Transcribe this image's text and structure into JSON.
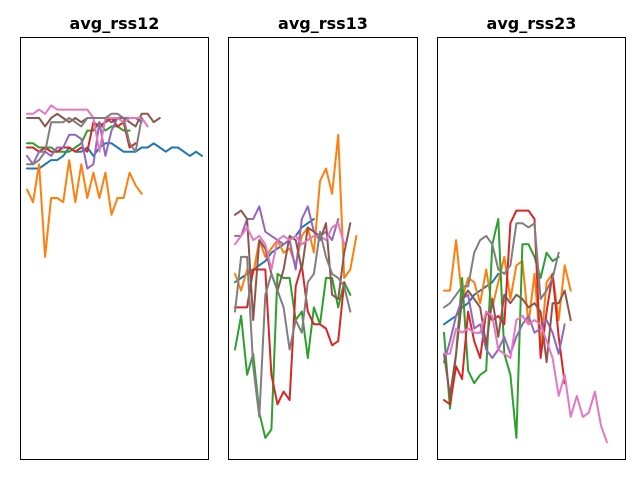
{
  "chart_data": [
    {
      "type": "line",
      "title": "avg_rss12",
      "xlabel": "",
      "ylabel": "",
      "grid": false,
      "series": [
        {
          "color": "#1f77b4",
          "values": [
            0.69,
            0.69,
            0.69,
            0.7,
            0.71,
            0.71,
            0.72,
            0.74,
            0.73,
            0.73,
            0.74,
            0.72,
            0.74,
            0.75,
            0.75,
            0.74,
            0.73,
            0.73,
            0.73,
            0.74,
            0.74,
            0.75,
            0.74,
            0.73,
            0.74,
            0.74,
            0.73,
            0.72,
            0.73,
            0.72
          ]
        },
        {
          "color": "#ff7f0e",
          "values": [
            0.64,
            0.61,
            0.7,
            0.48,
            0.62,
            0.62,
            0.61,
            0.71,
            0.61,
            0.7,
            0.62,
            0.68,
            0.62,
            0.68,
            0.58,
            0.62,
            0.62,
            0.68,
            0.65,
            0.63
          ]
        },
        {
          "color": "#2ca02c",
          "values": [
            0.75,
            0.75,
            0.74,
            0.74,
            0.74,
            0.73,
            0.73,
            0.73,
            0.74,
            0.75,
            0.78,
            0.78,
            0.8,
            0.78,
            0.79,
            0.79,
            0.78,
            0.78
          ]
        },
        {
          "color": "#d62728",
          "values": [
            0.74,
            0.74,
            0.73,
            0.74,
            0.73,
            0.73,
            0.74,
            0.74,
            0.73,
            0.74,
            0.73,
            0.8,
            0.79,
            0.8,
            0.81,
            0.79,
            0.8,
            0.74,
            0.75
          ]
        },
        {
          "color": "#9467bd",
          "values": [
            0.72,
            0.7,
            0.73,
            0.73,
            0.72,
            0.74,
            0.74,
            0.77,
            0.77,
            0.76,
            0.69,
            0.7,
            0.8,
            0.72,
            0.78,
            0.81,
            0.81,
            0.81,
            0.81,
            0.8
          ]
        },
        {
          "color": "#8c564b",
          "values": [
            0.81,
            0.81,
            0.81,
            0.79,
            0.81,
            0.82,
            0.81,
            0.8,
            0.81,
            0.8,
            0.81,
            0.81,
            0.81,
            0.81,
            0.8,
            0.81,
            0.81,
            0.8,
            0.79,
            0.82,
            0.82,
            0.8,
            0.81
          ]
        },
        {
          "color": "#e377c2",
          "values": [
            0.82,
            0.82,
            0.83,
            0.82,
            0.84,
            0.83,
            0.83,
            0.83,
            0.83,
            0.83,
            0.83,
            0.81,
            0.73,
            0.81,
            0.81,
            0.81,
            0.8,
            0.81,
            0.81,
            0.81,
            0.79
          ]
        },
        {
          "color": "#7f7f7f",
          "values": [
            0.7,
            0.7,
            0.71,
            0.73,
            0.8,
            0.8,
            0.8,
            0.81,
            0.8,
            0.79,
            0.81,
            0.81,
            0.81,
            0.81,
            0.82,
            0.82,
            0.81,
            0.75,
            0.73,
            0.81
          ]
        }
      ],
      "ylim": [
        0.0,
        1.0
      ]
    },
    {
      "type": "line",
      "title": "avg_rss13",
      "xlabel": "",
      "ylabel": "",
      "grid": false,
      "series": [
        {
          "color": "#1f77b4",
          "values": [
            0.42,
            0.43,
            0.44,
            0.45,
            0.46,
            0.47,
            0.49,
            0.5,
            0.51,
            0.52,
            0.53,
            0.55,
            0.56,
            0.57
          ]
        },
        {
          "color": "#ff7f0e",
          "values": [
            0.44,
            0.4,
            0.45,
            0.44,
            0.52,
            0.48,
            0.5,
            0.52,
            0.49,
            0.5,
            0.46,
            0.53,
            0.55,
            0.49,
            0.66,
            0.69,
            0.63,
            0.77,
            0.43,
            0.45,
            0.53
          ]
        },
        {
          "color": "#2ca02c",
          "values": [
            0.26,
            0.34,
            0.2,
            0.25,
            0.11,
            0.05,
            0.07,
            0.44,
            0.43,
            0.43,
            0.33,
            0.35,
            0.24,
            0.36,
            0.32,
            0.43,
            0.43,
            0.36,
            0.42,
            0.39
          ]
        },
        {
          "color": "#d62728",
          "values": [
            0.36,
            0.36,
            0.36,
            0.45,
            0.45,
            0.45,
            0.2,
            0.13,
            0.16,
            0.14,
            0.41,
            0.46,
            0.35,
            0.32,
            0.32,
            0.31,
            0.27,
            0.28,
            0.42
          ]
        },
        {
          "color": "#9467bd",
          "values": [
            0.53,
            0.53,
            0.57,
            0.57,
            0.6,
            0.54,
            0.53,
            0.52,
            0.51,
            0.52,
            0.45,
            0.57,
            0.6,
            0.54,
            0.53,
            0.54,
            0.52,
            0.57
          ]
        },
        {
          "color": "#8c564b",
          "values": [
            0.58,
            0.59,
            0.57,
            0.33,
            0.52,
            0.5,
            0.44,
            0.4,
            0.45,
            0.53,
            0.52,
            0.45,
            0.55,
            0.54,
            0.52,
            0.56,
            0.39,
            0.38,
            0.49,
            0.56
          ]
        },
        {
          "color": "#e377c2",
          "values": [
            0.51,
            0.53,
            0.55,
            0.52,
            0.53,
            0.51,
            0.45,
            0.52,
            0.53,
            0.52,
            0.53,
            0.51,
            0.52,
            0.53,
            0.53,
            0.52,
            0.55,
            0.56,
            0.51
          ]
        },
        {
          "color": "#7f7f7f",
          "values": [
            0.35,
            0.48,
            0.48,
            0.22,
            0.1,
            0.39,
            0.44,
            0.4,
            0.36,
            0.26,
            0.33,
            0.3,
            0.42,
            0.44,
            0.54,
            0.48,
            0.44,
            0.43,
            0.41,
            0.35
          ]
        }
      ],
      "ylim": [
        0.0,
        1.0
      ]
    },
    {
      "type": "line",
      "title": "avg_rss23",
      "xlabel": "",
      "ylabel": "",
      "grid": false,
      "series": [
        {
          "color": "#1f77b4",
          "values": [
            0.32,
            0.33,
            0.34,
            0.36,
            0.37,
            0.39,
            0.4,
            0.41,
            0.42,
            0.44
          ]
        },
        {
          "color": "#ff7f0e",
          "values": [
            0.4,
            0.4,
            0.52,
            0.38,
            0.43,
            0.42,
            0.37,
            0.45,
            0.36,
            0.42,
            0.48,
            0.38,
            0.46,
            0.47,
            0.32,
            0.44,
            0.26,
            0.42,
            0.44,
            0.33,
            0.46,
            0.4
          ]
        },
        {
          "color": "#2ca02c",
          "values": [
            0.3,
            0.12,
            0.25,
            0.43,
            0.21,
            0.18,
            0.2,
            0.21,
            0.51,
            0.57,
            0.25,
            0.2,
            0.05,
            0.51,
            0.51,
            0.48,
            0.43,
            0.49,
            0.47,
            0.48
          ]
        },
        {
          "color": "#d62728",
          "values": [
            0.14,
            0.13,
            0.22,
            0.19,
            0.35,
            0.28,
            0.24,
            0.35,
            0.33,
            0.34,
            0.32,
            0.56,
            0.59,
            0.59,
            0.59,
            0.57,
            0.24,
            0.35,
            0.44,
            0.29,
            0.18
          ]
        },
        {
          "color": "#9467bd",
          "values": [
            0.23,
            0.28,
            0.34,
            0.38,
            0.39,
            0.31,
            0.32,
            0.26,
            0.24,
            0.26,
            0.29,
            0.25,
            0.29,
            0.32,
            0.34,
            0.3,
            0.31,
            0.33,
            0.3,
            0.25,
            0.32
          ]
        },
        {
          "color": "#8c564b",
          "values": [
            0.25,
            0.15,
            0.25,
            0.38,
            0.4,
            0.38,
            0.36,
            0.27,
            0.38,
            0.29,
            0.39,
            0.37,
            0.39,
            0.38,
            0.36,
            0.37,
            0.35,
            0.23,
            0.37,
            0.37,
            0.4,
            0.33
          ]
        },
        {
          "color": "#e377c2",
          "values": [
            0.25,
            0.25,
            0.31,
            0.3,
            0.31,
            0.3,
            0.3,
            0.35,
            0.34,
            0.26,
            0.25,
            0.24,
            0.33,
            0.34,
            0.32,
            0.33,
            0.32,
            0.28,
            0.24,
            0.15,
            0.2,
            0.1,
            0.15,
            0.1,
            0.11,
            0.16,
            0.08,
            0.04
          ]
        },
        {
          "color": "#7f7f7f",
          "values": [
            0.36,
            0.37,
            0.39,
            0.41,
            0.41,
            0.49,
            0.52,
            0.53,
            0.51,
            0.45,
            0.44,
            0.46,
            0.56,
            0.56,
            0.55,
            0.56,
            0.38,
            0.4,
            0.43,
            0.49
          ]
        }
      ],
      "ylim": [
        0.0,
        1.0
      ]
    }
  ]
}
